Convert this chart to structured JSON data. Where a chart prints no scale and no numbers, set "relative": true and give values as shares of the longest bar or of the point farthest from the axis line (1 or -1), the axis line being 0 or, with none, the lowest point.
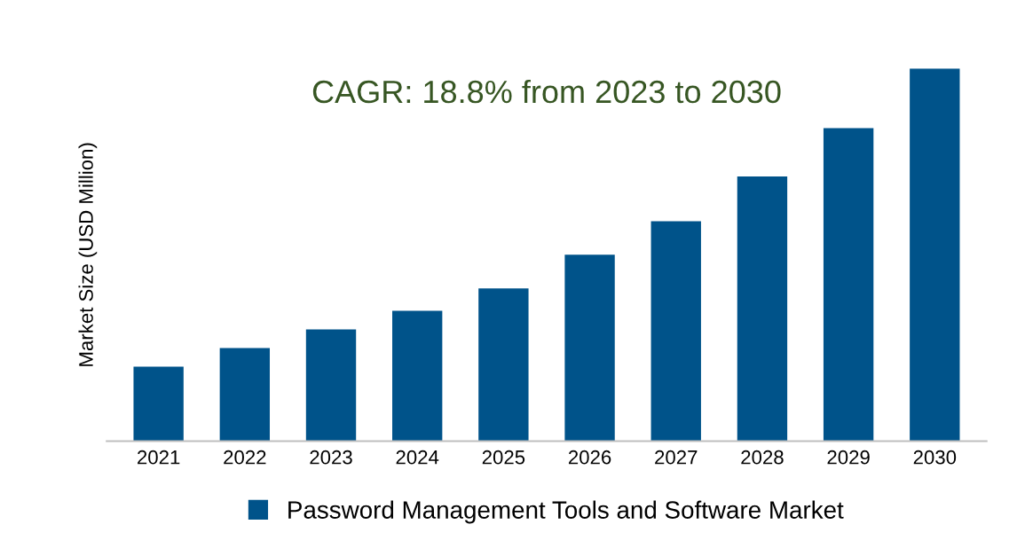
{
  "chart_data": {
    "type": "bar",
    "relative": true,
    "ylabel": "Market Size (USD Million)",
    "categories": [
      "2021",
      "2022",
      "2023",
      "2024",
      "2025",
      "2026",
      "2027",
      "2028",
      "2029",
      "2030"
    ],
    "series": [
      {
        "name": "Password Management Tools and Software Market",
        "color": "#00538a",
        "values": [
          0.2,
          0.25,
          0.3,
          0.35,
          0.41,
          0.5,
          0.59,
          0.71,
          0.84,
          1.0
        ]
      }
    ],
    "annotations": [
      "CAGR: 18.8% from 2023 to 2030"
    ],
    "legend": "bottom",
    "grid": false
  }
}
